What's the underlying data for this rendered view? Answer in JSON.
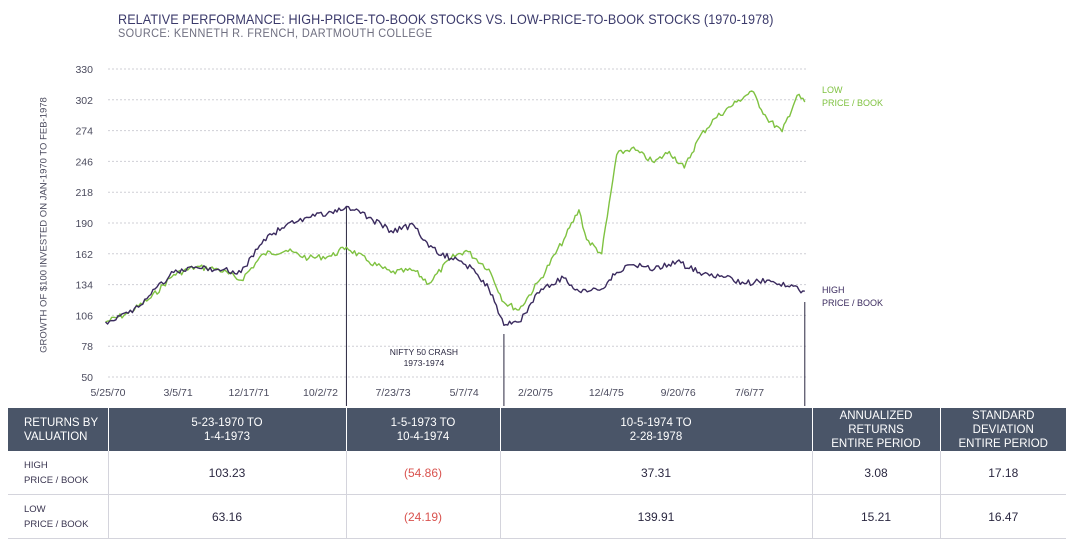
{
  "title": "RELATIVE PERFORMANCE: HIGH-PRICE-TO-BOOK STOCKS VS. LOW-PRICE-TO-BOOK STOCKS (1970-1978)",
  "source": "SOURCE: KENNETH R. FRENCH, DARTMOUTH COLLEGE",
  "colors": {
    "low": "#7fc241",
    "high": "#3a2a5e",
    "header_bg": "#4a5568",
    "negative": "#d9534f"
  },
  "chart_data": {
    "type": "line",
    "ylabel": "GROWTH OF $100 INVESTED ON JAN-1970 TO FEB-1978",
    "ylim": [
      50,
      330
    ],
    "y_ticks": [
      "330",
      "302",
      "274",
      "246",
      "218",
      "190",
      "162",
      "134",
      "106",
      "78",
      "50"
    ],
    "x_tick_labels": [
      "5/25/70",
      "3/5/71",
      "12/17/71",
      "10/2/72",
      "7/23/73",
      "5/7/74",
      "2/20/75",
      "12/4/75",
      "9/20/76",
      "7/6/77"
    ],
    "grid": true,
    "series": [
      {
        "name": "LOW PRICE / BOOK",
        "label_lines": [
          "LOW",
          "PRICE / BOOK"
        ],
        "points": [
          [
            "1970-05",
            100
          ],
          [
            "1970-08",
            108
          ],
          [
            "1970-11",
            122
          ],
          [
            "1971-02",
            143
          ],
          [
            "1971-05",
            150
          ],
          [
            "1971-08",
            148
          ],
          [
            "1971-11",
            138
          ],
          [
            "1972-02",
            162
          ],
          [
            "1972-05",
            165
          ],
          [
            "1972-08",
            158
          ],
          [
            "1972-11",
            160
          ],
          [
            "1973-01",
            168
          ],
          [
            "1973-04",
            155
          ],
          [
            "1973-07",
            145
          ],
          [
            "1973-10",
            147
          ],
          [
            "1973-12",
            135
          ],
          [
            "1974-03",
            158
          ],
          [
            "1974-05",
            165
          ],
          [
            "1974-08",
            148
          ],
          [
            "1974-10",
            118
          ],
          [
            "1974-12",
            111
          ],
          [
            "1975-03",
            140
          ],
          [
            "1975-06",
            175
          ],
          [
            "1975-08",
            202
          ],
          [
            "1975-09",
            175
          ],
          [
            "1975-11",
            162
          ],
          [
            "1976-01",
            252
          ],
          [
            "1976-03",
            258
          ],
          [
            "1976-06",
            245
          ],
          [
            "1976-08",
            255
          ],
          [
            "1976-10",
            240
          ],
          [
            "1976-12",
            268
          ],
          [
            "1977-02",
            285
          ],
          [
            "1977-05",
            300
          ],
          [
            "1977-07",
            310
          ],
          [
            "1977-09",
            285
          ],
          [
            "1977-11",
            273
          ],
          [
            "1978-01",
            306
          ],
          [
            "1978-02",
            300
          ]
        ]
      },
      {
        "name": "HIGH PRICE / BOOK",
        "label_lines": [
          "HIGH",
          "PRICE / BOOK"
        ],
        "points": [
          [
            "1970-05",
            100
          ],
          [
            "1970-08",
            108
          ],
          [
            "1970-11",
            125
          ],
          [
            "1971-02",
            145
          ],
          [
            "1971-05",
            150
          ],
          [
            "1971-08",
            148
          ],
          [
            "1971-11",
            145
          ],
          [
            "1972-02",
            175
          ],
          [
            "1972-05",
            188
          ],
          [
            "1972-08",
            195
          ],
          [
            "1972-11",
            200
          ],
          [
            "1973-01",
            205
          ],
          [
            "1973-04",
            195
          ],
          [
            "1973-07",
            183
          ],
          [
            "1973-10",
            188
          ],
          [
            "1973-12",
            168
          ],
          [
            "1974-03",
            158
          ],
          [
            "1974-06",
            148
          ],
          [
            "1974-08",
            130
          ],
          [
            "1974-10",
            97
          ],
          [
            "1974-12",
            100
          ],
          [
            "1975-03",
            130
          ],
          [
            "1975-06",
            140
          ],
          [
            "1975-08",
            128
          ],
          [
            "1975-11",
            130
          ],
          [
            "1976-01",
            145
          ],
          [
            "1976-03",
            152
          ],
          [
            "1976-06",
            148
          ],
          [
            "1976-09",
            155
          ],
          [
            "1976-12",
            145
          ],
          [
            "1977-03",
            142
          ],
          [
            "1977-06",
            135
          ],
          [
            "1977-09",
            138
          ],
          [
            "1977-12",
            132
          ],
          [
            "1978-02",
            128
          ]
        ]
      }
    ],
    "annotations": [
      {
        "date": "1973-01",
        "label_lines": []
      },
      {
        "date": "1974-10",
        "label_lines": [
          "NIFTY 50 CRASH",
          "1973-1974"
        ]
      },
      {
        "date": "1978-02",
        "label_lines": []
      }
    ]
  },
  "table": {
    "headers": [
      [
        "RETURNS BY",
        "VALUATION"
      ],
      [
        "5-23-1970 TO",
        "1-4-1973"
      ],
      [
        "1-5-1973 TO",
        "10-4-1974"
      ],
      [
        "10-5-1974  TO",
        "2-28-1978"
      ],
      [
        "ANNUALIZED RETURNS",
        "ENTIRE PERIOD"
      ],
      [
        "STANDARD DEVIATION",
        "ENTIRE PERIOD"
      ]
    ],
    "rows": [
      {
        "label_lines": [
          "HIGH",
          "PRICE / BOOK"
        ],
        "values": [
          "103.23",
          "(54.86)",
          "37.31",
          "3.08",
          "17.18"
        ]
      },
      {
        "label_lines": [
          "LOW",
          "PRICE / BOOK"
        ],
        "values": [
          "63.16",
          "(24.19)",
          "139.91",
          "15.21",
          "16.47"
        ]
      }
    ]
  }
}
